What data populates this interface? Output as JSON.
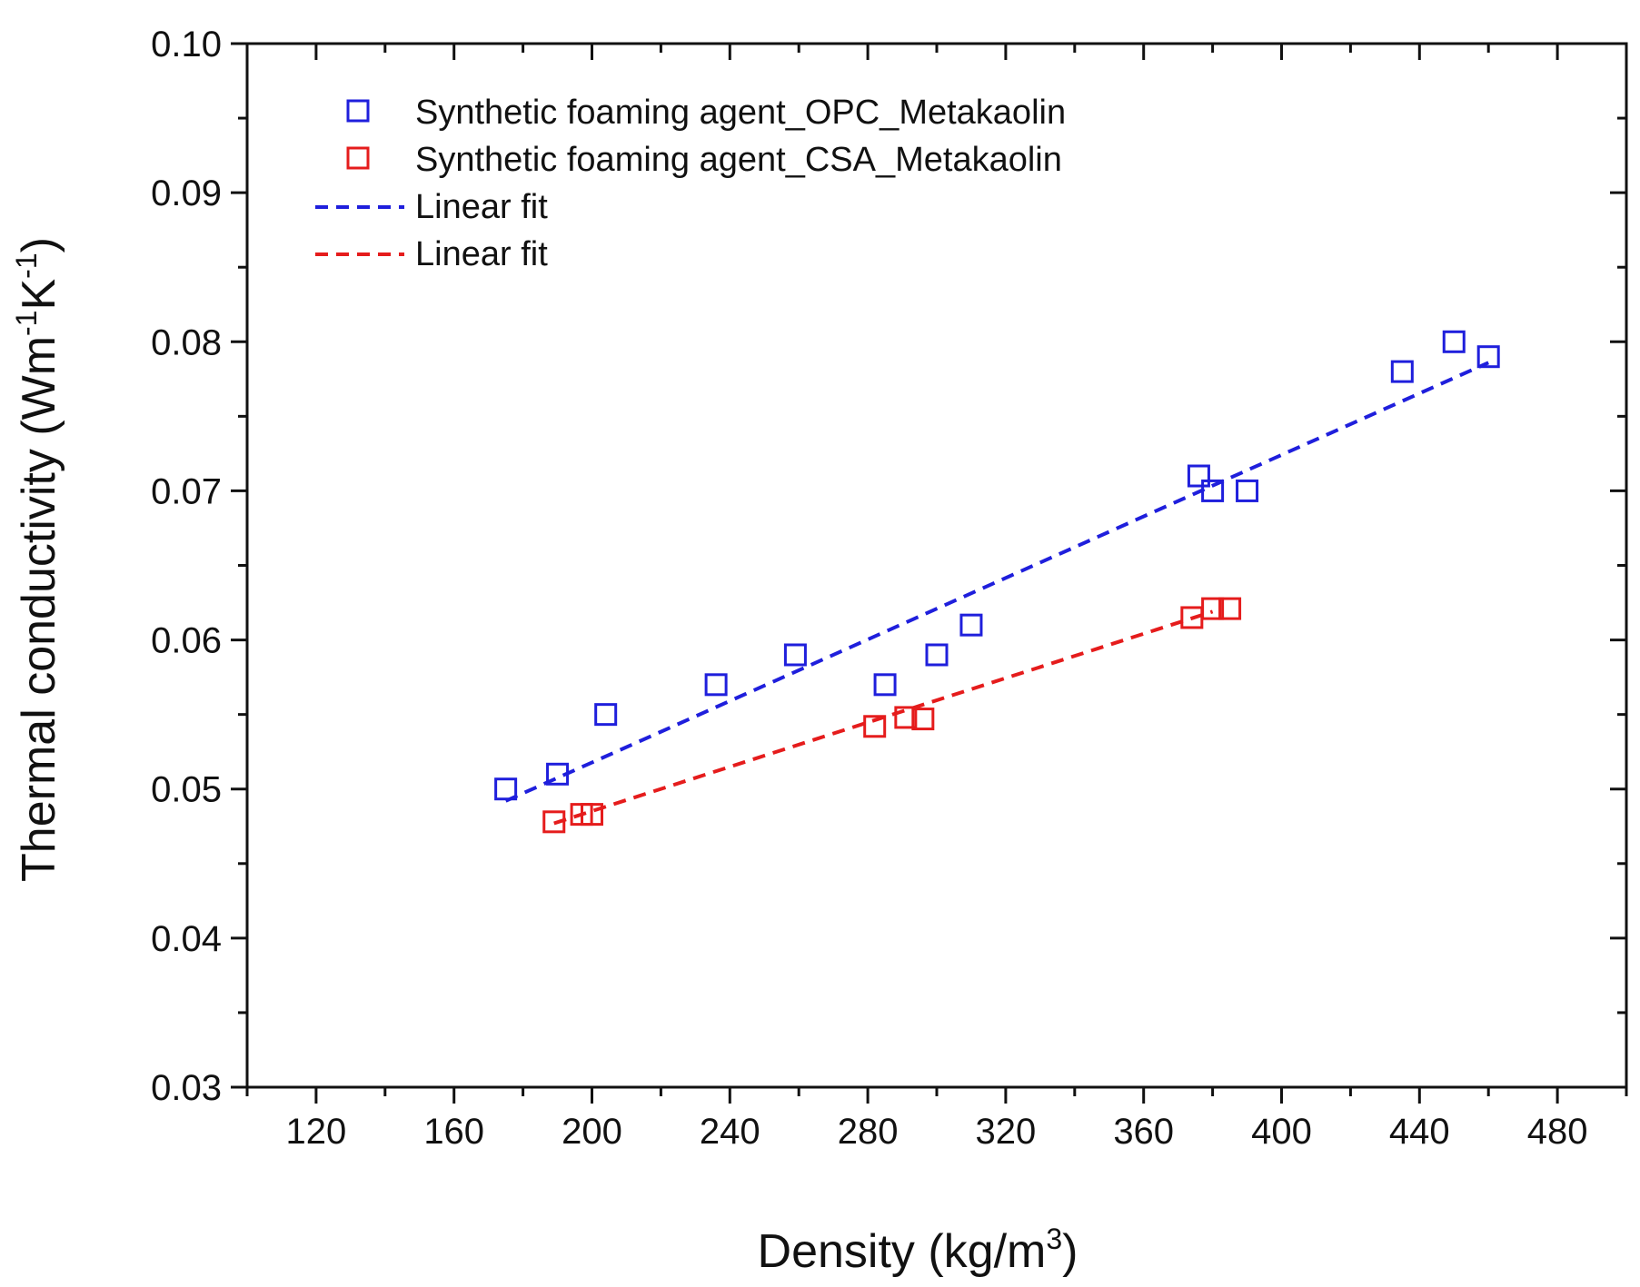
{
  "chart_data": {
    "type": "scatter",
    "xlabel": "Density (kg/m",
    "xlabel_sup": "3",
    "xlabel_end": ")",
    "ylabel_parts": [
      "Thermal conductivity (Wm",
      "-1",
      "K",
      "-1",
      ")"
    ],
    "xlim": [
      100,
      500
    ],
    "ylim": [
      0.03,
      0.1
    ],
    "x_ticks": [
      120,
      160,
      200,
      240,
      280,
      320,
      360,
      400,
      440,
      480
    ],
    "x_tick_labels": [
      "120",
      "160",
      "200",
      "240",
      "280",
      "320",
      "360",
      "400",
      "440",
      "480"
    ],
    "y_ticks": [
      0.03,
      0.04,
      0.05,
      0.06,
      0.07,
      0.08,
      0.09,
      0.1
    ],
    "y_tick_labels": [
      "0.03",
      "0.04",
      "0.05",
      "0.06",
      "0.07",
      "0.08",
      "0.09",
      "0.10"
    ],
    "series": [
      {
        "name": "Synthetic foaming agent_OPC_Metakaolin",
        "kind": "scatter",
        "marker": "open-square",
        "color": "#1f1fdc",
        "x": [
          175,
          190,
          204,
          236,
          259,
          285,
          300,
          310,
          376,
          380,
          390,
          435,
          450,
          460
        ],
        "y": [
          0.05,
          0.051,
          0.055,
          0.057,
          0.059,
          0.057,
          0.059,
          0.061,
          0.071,
          0.07,
          0.07,
          0.078,
          0.08,
          0.079
        ]
      },
      {
        "name": "Synthetic foaming agent_CSA_Metakaolin",
        "kind": "scatter",
        "marker": "open-square",
        "color": "#e51c1c",
        "x": [
          189,
          197,
          200,
          282,
          291,
          296,
          374,
          380,
          385
        ],
        "y": [
          0.0478,
          0.0483,
          0.0483,
          0.0542,
          0.0548,
          0.0547,
          0.0615,
          0.0621,
          0.0621
        ]
      },
      {
        "name": "Linear fit",
        "kind": "line",
        "dash": "dashed",
        "color": "#1f1fdc",
        "x": [
          175,
          460
        ],
        "y": [
          0.0492,
          0.0786
        ]
      },
      {
        "name": "Linear fit",
        "kind": "line",
        "dash": "dashed",
        "color": "#e51c1c",
        "x": [
          189,
          380
        ],
        "y": [
          0.0477,
          0.0619
        ]
      }
    ],
    "legend_position": "top-left"
  }
}
